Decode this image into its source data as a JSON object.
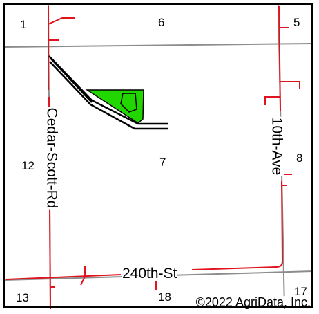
{
  "map": {
    "sections": {
      "s1": "1",
      "s6": "6",
      "s5": "5",
      "s12": "12",
      "s7": "7",
      "s8": "8",
      "s13": "13",
      "s18": "18",
      "s17": "17"
    },
    "roads": {
      "cedar_scott": "Cedar-Scott-Rd",
      "tenth_ave": "10th-Ave",
      "st_240": "240th-St"
    },
    "copyright": "©2022 AgriData, Inc.",
    "colors": {
      "section_line": "#8c8c8c",
      "road_line": "#e0141e",
      "field_fill": "#22d600",
      "parcel_outline": "#000000"
    }
  }
}
